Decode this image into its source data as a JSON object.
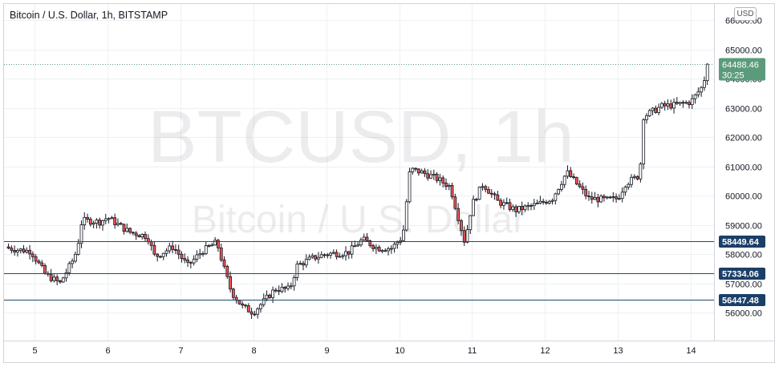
{
  "header": {
    "title": "Bitcoin / U.S. Dollar, 1h, BITSTAMP",
    "currency_button": "USD"
  },
  "watermark": {
    "symbol": "BTCUSD, 1h",
    "name": "Bitcoin / U.S. Dollar"
  },
  "colors": {
    "up": "#26a69a",
    "down": "#ef5350",
    "candle_body_up": "#ffffff",
    "candle_body_down": "#ef5350",
    "candle_wick": "#131722",
    "line": "#1b4b72",
    "line_label_bg": "#1a3f68",
    "price_tag_bg": "#5b9b7c",
    "grid": "#eef0f3",
    "watermark": "rgba(120,123,134,0.14)"
  },
  "chart_data": {
    "type": "candlestick",
    "x_axis": {
      "labels": [
        "5",
        "6",
        "7",
        "8",
        "9",
        "10",
        "11",
        "12",
        "13",
        "14"
      ]
    },
    "y_axis": {
      "labels": [
        "56000.00",
        "57000.00",
        "58000.00",
        "59000.00",
        "60000.00",
        "61000.00",
        "62000.00",
        "63000.00",
        "64000.00",
        "65000.00",
        "66000.00"
      ],
      "range": [
        55300,
        66100
      ]
    },
    "current_price": {
      "value": 64488.46,
      "label": "64488.46",
      "countdown": "30:25"
    },
    "horizontal_lines": [
      {
        "value": 58449.64,
        "label": "58449.64"
      },
      {
        "value": 57334.06,
        "label": "57334.06"
      },
      {
        "value": 56447.48,
        "label": "56447.48"
      }
    ],
    "path_start_day": 4.56,
    "path_end_day": 14.25,
    "price_path": [
      [
        4.55,
        58250
      ],
      [
        4.75,
        58150
      ],
      [
        4.95,
        58100
      ],
      [
        5.15,
        57300
      ],
      [
        5.35,
        57000
      ],
      [
        5.55,
        57900
      ],
      [
        5.6,
        58400
      ],
      [
        5.65,
        59150
      ],
      [
        5.9,
        59100
      ],
      [
        6.0,
        59250
      ],
      [
        6.3,
        58750
      ],
      [
        6.55,
        58600
      ],
      [
        6.65,
        57900
      ],
      [
        6.9,
        58250
      ],
      [
        7.1,
        57600
      ],
      [
        7.3,
        58100
      ],
      [
        7.5,
        58400
      ],
      [
        7.6,
        57500
      ],
      [
        7.7,
        56700
      ],
      [
        7.85,
        56200
      ],
      [
        8.0,
        56000
      ],
      [
        8.15,
        56400
      ],
      [
        8.3,
        56800
      ],
      [
        8.5,
        56800
      ],
      [
        8.6,
        57600
      ],
      [
        8.8,
        57850
      ],
      [
        9.0,
        58000
      ],
      [
        9.3,
        58050
      ],
      [
        9.5,
        58500
      ],
      [
        9.7,
        58200
      ],
      [
        9.9,
        58200
      ],
      [
        10.05,
        58600
      ],
      [
        10.15,
        60900
      ],
      [
        10.3,
        60800
      ],
      [
        10.5,
        60600
      ],
      [
        10.7,
        60300
      ],
      [
        10.9,
        58400
      ],
      [
        11.0,
        59700
      ],
      [
        11.15,
        60400
      ],
      [
        11.35,
        59800
      ],
      [
        11.6,
        59500
      ],
      [
        11.9,
        59700
      ],
      [
        12.1,
        59900
      ],
      [
        12.3,
        60800
      ],
      [
        12.4,
        60500
      ],
      [
        12.6,
        59900
      ],
      [
        12.85,
        59850
      ],
      [
        13.0,
        59900
      ],
      [
        13.1,
        60400
      ],
      [
        13.3,
        60700
      ],
      [
        13.35,
        62700
      ],
      [
        13.6,
        63050
      ],
      [
        13.8,
        63100
      ],
      [
        14.0,
        63200
      ],
      [
        14.15,
        63700
      ],
      [
        14.25,
        64488.46
      ]
    ]
  }
}
